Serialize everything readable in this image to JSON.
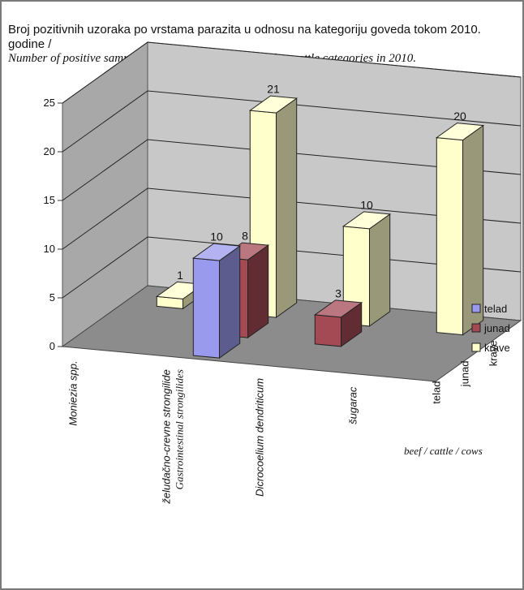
{
  "header": {
    "title_sr": "Broj pozitivnih uzoraka po vrstama parazita u odnosu na kategoriju goveda tokom 2010. godine /",
    "title_en": "Number of positive samples by parasite kinds in regard to cattle categories in 2010."
  },
  "chart_data": {
    "type": "bar",
    "categories": [
      "Moniezia spp.",
      "želudačno-crevne strongilide",
      "Dicrocoelium dendriticum",
      "šugarac"
    ],
    "category_translations": [
      "",
      "Gastrointestinal strongilides",
      "",
      ""
    ],
    "series": [
      {
        "name": "telad",
        "values": [
          null,
          10,
          null,
          null
        ],
        "color": "#9999ee"
      },
      {
        "name": "junad",
        "values": [
          null,
          8,
          3,
          null
        ],
        "color": "#a34a55"
      },
      {
        "name": "krave",
        "values": [
          1,
          21,
          10,
          20
        ],
        "color": "#ffffcc"
      }
    ],
    "depth_labels": [
      "telad",
      "junad",
      "krave"
    ],
    "y_ticks": [
      "0",
      "5",
      "10",
      "15",
      "20",
      "25"
    ],
    "ylim": [
      0,
      25
    ],
    "legend": {
      "position": "right",
      "items": [
        "telad",
        "junad",
        "krave"
      ]
    },
    "grid": true,
    "note": "beef / cattle / cows"
  }
}
